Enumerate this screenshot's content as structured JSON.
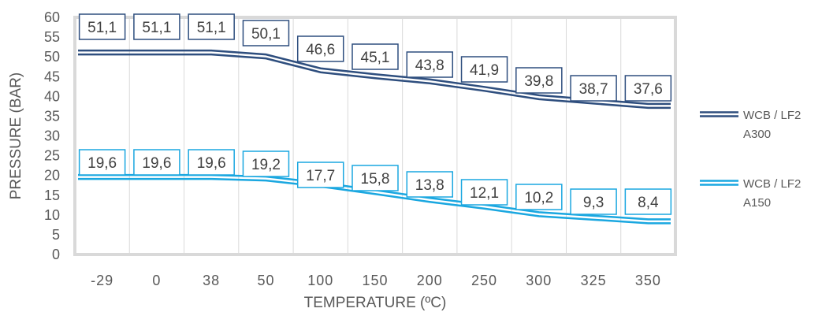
{
  "chart_data": {
    "type": "line",
    "title": "",
    "xlabel": "TEMPERATURE (ºC)",
    "ylabel": "PRESSURE (BAR)",
    "categories": [
      "-29",
      "0",
      "38",
      "50",
      "100",
      "150",
      "200",
      "250",
      "300",
      "325",
      "350"
    ],
    "ylim": [
      0,
      60
    ],
    "yticks": [
      0,
      5,
      10,
      15,
      20,
      25,
      30,
      35,
      40,
      45,
      50,
      55,
      60
    ],
    "grid": "vertical",
    "legend_position": "right",
    "series": [
      {
        "name": "WCB / LF2 A300",
        "legend_lines": [
          "WCB / LF2",
          "A300"
        ],
        "color": "#2E4E7E",
        "values": [
          51.1,
          51.1,
          51.1,
          50.1,
          46.6,
          45.1,
          43.8,
          41.9,
          39.8,
          38.7,
          37.6
        ],
        "labels": [
          "51,1",
          "51,1",
          "51,1",
          "50,1",
          "46,6",
          "45,1",
          "43,8",
          "41,9",
          "39,8",
          "38,7",
          "37,6"
        ]
      },
      {
        "name": "WCB / LF2 A150",
        "legend_lines": [
          "WCB / LF2",
          "A150"
        ],
        "color": "#1AA7E0",
        "values": [
          19.6,
          19.6,
          19.6,
          19.2,
          17.7,
          15.8,
          13.8,
          12.1,
          10.2,
          9.3,
          8.4
        ],
        "labels": [
          "19,6",
          "19,6",
          "19,6",
          "19,2",
          "17,7",
          "15,8",
          "13,8",
          "12,1",
          "10,2",
          "9,3",
          "8,4"
        ]
      }
    ]
  }
}
